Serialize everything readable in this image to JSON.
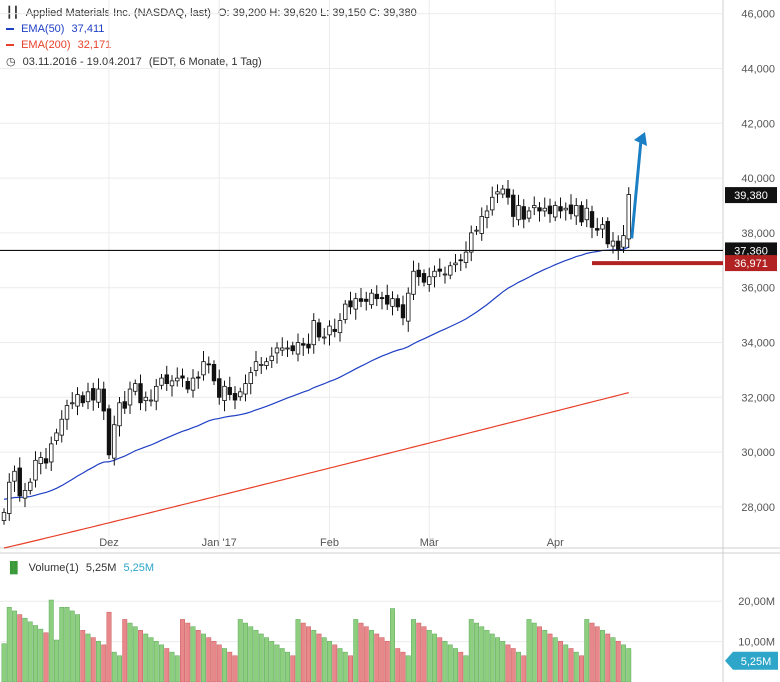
{
  "header": {
    "title": "Applied Materials Inc. (NASDAQ, last)",
    "ohlc": "O: 39,200  H: 39,620  L: 39,150  C: 39,380",
    "ema50_label": "EMA(50)",
    "ema50_value": "37,411",
    "ema200_label": "EMA(200)",
    "ema200_value": "32,171",
    "date_range": "03.11.2016 - 19.04.2017",
    "settings": "(EDT, 6 Monate, 1 Tag)"
  },
  "volume_header": {
    "label": "Volume(1)",
    "value1": "5,25M",
    "value2": "5,25M"
  },
  "colors": {
    "ema50": "#1f3fc4",
    "ema200": "#e8402a",
    "up_volume": "#8dcf7f",
    "down_volume": "#e8888a",
    "arrow": "#1a7fc4",
    "support": "#b22222",
    "volume_badge": "#2ea6c9"
  },
  "chart_data": {
    "type": "candlestick",
    "price_axis": {
      "ylim": [
        26500,
        46500
      ],
      "ticks": [
        28000,
        30000,
        32000,
        34000,
        36000,
        38000,
        40000,
        42000,
        44000,
        46000
      ],
      "tick_labels": [
        "28,000",
        "30,000",
        "32,000",
        "34,000",
        "36,000",
        "38,000",
        "40,000",
        "42,000",
        "44,000",
        "46,000"
      ]
    },
    "x_axis": {
      "labels": [
        {
          "label": "Dez",
          "index": 20
        },
        {
          "label": "Jan '17",
          "index": 41
        },
        {
          "label": "Feb",
          "index": 62
        },
        {
          "label": "Mär",
          "index": 81
        },
        {
          "label": "Apr",
          "index": 105
        }
      ]
    },
    "closes": [
      27.8,
      28.9,
      29.3,
      28.4,
      28.6,
      28.9,
      29.7,
      29.8,
      29.6,
      30.3,
      30.7,
      31.2,
      31.7,
      31.8,
      32.1,
      31.8,
      32.2,
      31.9,
      32.3,
      31.5,
      29.9,
      31.0,
      31.8,
      31.6,
      32.3,
      32.5,
      31.8,
      32.0,
      31.9,
      32.4,
      32.7,
      32.5,
      32.6,
      32.7,
      32.7,
      32.3,
      32.7,
      32.7,
      33.3,
      33.2,
      32.6,
      32.0,
      32.4,
      32.1,
      31.9,
      32.2,
      32.5,
      32.9,
      33.3,
      33.2,
      33.3,
      33.5,
      33.8,
      33.8,
      33.8,
      33.7,
      34.0,
      33.9,
      33.8,
      34.8,
      34.2,
      34.2,
      34.6,
      34.4,
      34.8,
      35.4,
      35.3,
      35.6,
      35.5,
      35.5,
      35.8,
      35.6,
      35.6,
      35.4,
      35.6,
      35.3,
      34.9,
      35.8,
      36.6,
      36.4,
      36.2,
      36.4,
      36.6,
      36.6,
      36.5,
      36.8,
      36.9,
      37.0,
      37.3,
      38.0,
      38.1,
      38.6,
      38.8,
      39.3,
      39.5,
      39.6,
      39.3,
      38.6,
      39.0,
      38.5,
      38.8,
      39.0,
      38.8,
      38.9,
      38.7,
      39.0,
      38.8,
      38.9,
      38.7,
      39.0,
      38.4,
      38.9,
      38.2,
      38.1,
      38.3,
      37.6,
      37.7,
      37.4,
      37.9,
      39.4
    ],
    "open_range": {
      "low": 26500,
      "high": 46500
    },
    "ema50": {
      "name": "EMA(50)",
      "last": 37411,
      "start": 28.3
    },
    "ema200": {
      "name": "EMA(200)",
      "last": 32171
    },
    "current_price": {
      "label": "39,380",
      "value": 39380
    },
    "horizontal_line": {
      "label": "37,360",
      "value": 37360
    },
    "support_line": {
      "label": "36,971",
      "value": 36971
    },
    "volume_axis": {
      "ticks": [
        10000000,
        20000000
      ],
      "tick_labels": [
        "10,00M",
        "20,00M"
      ],
      "current_label": "5,25M"
    }
  }
}
